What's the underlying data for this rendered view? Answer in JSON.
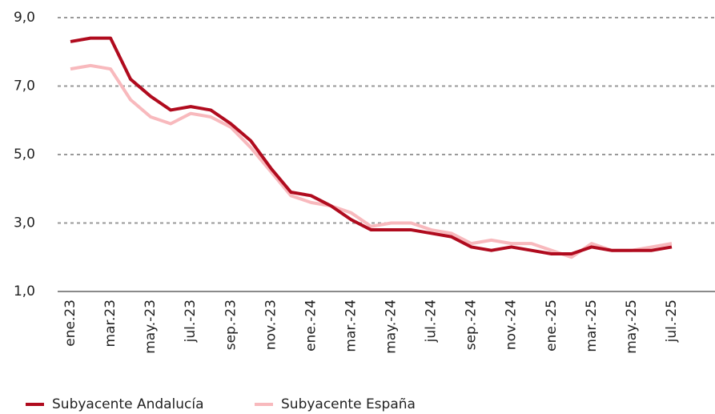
{
  "chart_data": {
    "type": "line",
    "categories": [
      "ene.23",
      null,
      "mar.23",
      null,
      "may.-23",
      null,
      "jul.-23",
      null,
      "sep.-23",
      null,
      "nov.-23",
      null,
      "ene.-24",
      null,
      "mar.-24",
      null,
      "may.-24",
      null,
      "jul.-24",
      null,
      "sep.-24",
      null,
      "nov.-24",
      null,
      "ene.-25",
      null,
      "mar.-25",
      null,
      "may.-25",
      null,
      "jul.-25"
    ],
    "series": [
      {
        "name": "Subyacente Andalucía",
        "color": "#b00b1e",
        "values": [
          8.3,
          8.4,
          8.4,
          7.2,
          6.7,
          6.3,
          6.4,
          6.3,
          5.9,
          5.4,
          4.6,
          3.9,
          3.8,
          3.5,
          3.1,
          2.8,
          2.8,
          2.8,
          2.7,
          2.6,
          2.3,
          2.2,
          2.3,
          2.2,
          2.1,
          2.1,
          2.3,
          2.2,
          2.2,
          2.2,
          2.3
        ]
      },
      {
        "name": "Subyacente España",
        "color": "#f8b9bd",
        "values": [
          7.5,
          7.6,
          7.5,
          6.6,
          6.1,
          5.9,
          6.2,
          6.1,
          5.8,
          5.2,
          4.5,
          3.8,
          3.6,
          3.5,
          3.3,
          2.9,
          3.0,
          3.0,
          2.8,
          2.7,
          2.4,
          2.5,
          2.4,
          2.4,
          2.2,
          2.0,
          2.4,
          2.2,
          2.2,
          2.3,
          2.4
        ]
      }
    ],
    "ylim": [
      1,
      9
    ],
    "yticks": [
      {
        "value": 1,
        "label": "1,0"
      },
      {
        "value": 3,
        "label": "3,0"
      },
      {
        "value": 5,
        "label": "5,0"
      },
      {
        "value": 7,
        "label": "7,0"
      },
      {
        "value": 9,
        "label": "9,0"
      }
    ],
    "grid": true
  }
}
